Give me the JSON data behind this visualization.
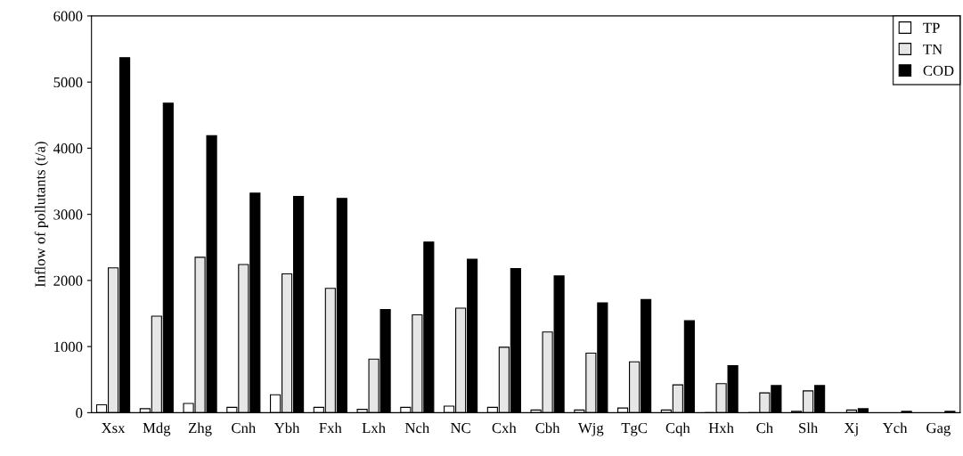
{
  "chart_data": {
    "type": "bar",
    "ylabel": "Inflow of pollutants (t/a)",
    "categories": [
      "Xsx",
      "Mdg",
      "Zhg",
      "Cnh",
      "Ybh",
      "Fxh",
      "Lxh",
      "Nch",
      "NC",
      "Cxh",
      "Cbh",
      "Wjg",
      "TgC",
      "Cqh",
      "Hxh",
      "Ch",
      "Slh",
      "Xj",
      "Ych",
      "Gag"
    ],
    "series": [
      {
        "name": "TP",
        "color": "#ffffff",
        "values": [
          120,
          60,
          140,
          80,
          270,
          80,
          50,
          80,
          100,
          80,
          40,
          40,
          70,
          40,
          0,
          0,
          20,
          null,
          null,
          null
        ]
      },
      {
        "name": "TN",
        "color": "#e6e6e6",
        "values": [
          2190,
          1460,
          2350,
          2240,
          2100,
          1880,
          810,
          1480,
          1580,
          990,
          1220,
          900,
          770,
          420,
          440,
          300,
          330,
          40,
          null,
          null
        ]
      },
      {
        "name": "COD",
        "color": "#000000",
        "values": [
          5370,
          4680,
          4190,
          3320,
          3270,
          3240,
          1560,
          2580,
          2320,
          2180,
          2070,
          1660,
          1710,
          1390,
          710,
          410,
          410,
          60,
          20,
          20
        ]
      }
    ],
    "ylim": [
      0,
      6000
    ],
    "yticks": [
      0,
      1000,
      2000,
      3000,
      4000,
      5000,
      6000
    ],
    "grid": false,
    "legend": "top right"
  }
}
